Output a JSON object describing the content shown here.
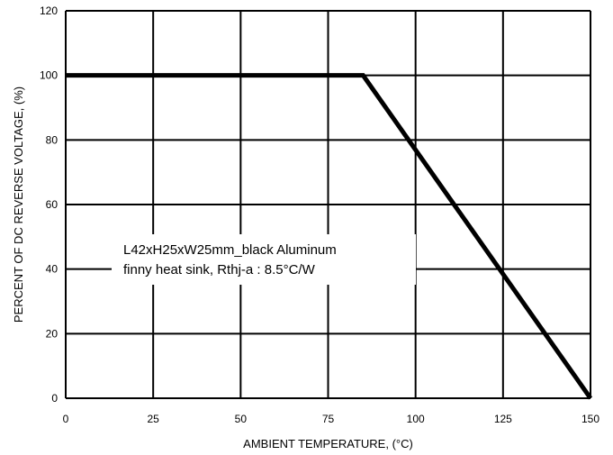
{
  "chart_data": {
    "type": "line",
    "xlabel": "AMBIENT TEMPERATURE, (°C)",
    "ylabel": "PERCENT OF DC REVERSE VOLTAGE, (%)",
    "xlim": [
      0,
      150
    ],
    "ylim": [
      0,
      120
    ],
    "x_ticks": [
      "0",
      "25",
      "50",
      "75",
      "100",
      "125",
      "150"
    ],
    "y_ticks": [
      "0",
      "20",
      "40",
      "60",
      "80",
      "100",
      "120"
    ],
    "grid": true,
    "series": [
      {
        "x": [
          0,
          85,
          150
        ],
        "y": [
          100,
          100,
          0
        ]
      }
    ],
    "annotation": {
      "line1": "L42xH25xW25mm_black Aluminum",
      "line2": "finny heat sink, Rthj-a : 8.5°C/W"
    }
  }
}
